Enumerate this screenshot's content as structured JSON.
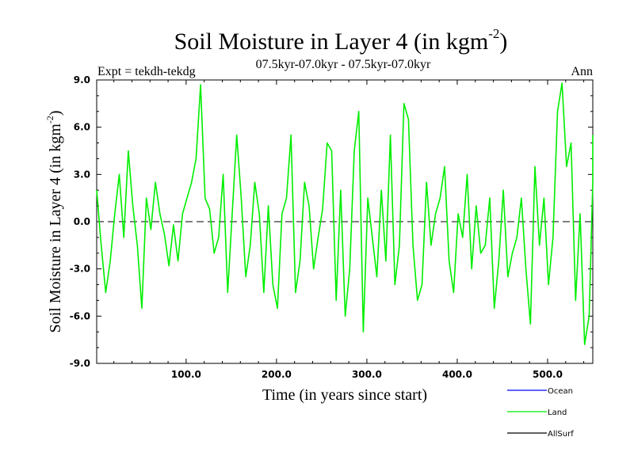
{
  "chart_data": {
    "type": "line",
    "title": "Soil Moisture in Layer 4 (in kgm",
    "title_sup": "-2",
    "title_close": ")",
    "subtitle_left": "Expt = tekdh-tekdg",
    "subtitle_center": "07.5kyr-07.0kyr - 07.5kyr-07.0kyr",
    "subtitle_right": "Ann",
    "xlabel": "Time (in years since start)",
    "ylabel": "Soil Moisture in Layer 4 (in kgm",
    "ylabel_sup": "-2",
    "ylabel_close": ")",
    "xlim": [
      1,
      550
    ],
    "ylim": [
      -9.0,
      9.0
    ],
    "x_ticks": [
      100,
      200,
      300,
      400,
      500
    ],
    "x_tick_labels": [
      "100.0",
      "200.0",
      "300.0",
      "400.0",
      "500.0"
    ],
    "y_ticks": [
      -9,
      -6,
      -3,
      0,
      3,
      6,
      9
    ],
    "y_tick_labels": [
      "-9.0",
      "-6.0",
      "-3.0",
      "0.0",
      "3.0",
      "6.0",
      "9.0"
    ],
    "zero_line": true,
    "series_color": "#00ee00",
    "series": [
      {
        "name": "Land",
        "x_start": 1,
        "x_step": 5,
        "values": [
          2.0,
          -1.5,
          -4.5,
          -2.5,
          0.5,
          3.0,
          -1.0,
          4.5,
          1.0,
          -1.5,
          -5.5,
          1.5,
          -0.5,
          2.5,
          0.5,
          -0.8,
          -2.8,
          -0.2,
          -2.5,
          0.5,
          1.5,
          2.5,
          4.0,
          8.7,
          1.5,
          0.8,
          -2.0,
          -1.0,
          3.0,
          -4.5,
          0.5,
          5.5,
          1.5,
          -3.5,
          -1.5,
          2.5,
          0.5,
          -4.5,
          1.0,
          -4.0,
          -5.5,
          0.5,
          1.5,
          5.5,
          -4.5,
          -2.5,
          2.5,
          1.0,
          -3.0,
          -1.0,
          0.8,
          5.0,
          4.5,
          -5.0,
          2.0,
          -6.0,
          -3.0,
          4.5,
          7.0,
          -7.0,
          1.5,
          -1.0,
          -3.5,
          2.0,
          -2.5,
          5.5,
          -4.0,
          -1.5,
          7.5,
          6.5,
          -1.5,
          -5.0,
          -4.0,
          2.5,
          -1.5,
          0.5,
          1.5,
          3.5,
          -2.5,
          -4.5,
          0.5,
          -1.0,
          3.0,
          -3.0,
          1.0,
          -2.0,
          -1.5,
          1.5,
          -5.5,
          -2.5,
          2.0,
          -3.5,
          -2.0,
          -1.0,
          1.5,
          -3.0,
          -6.5,
          3.5,
          -1.5,
          1.5,
          -4.0,
          -1.0,
          7.0,
          8.8,
          3.5,
          5.0,
          -5.0,
          0.5,
          -7.8,
          -6.0,
          2.5,
          5.5
        ]
      }
    ]
  },
  "legend": [
    {
      "label": "Ocean",
      "color": "#0000ff"
    },
    {
      "label": "Land",
      "color": "#00ee00"
    },
    {
      "label": "AllSurf",
      "color": "#000000"
    }
  ]
}
